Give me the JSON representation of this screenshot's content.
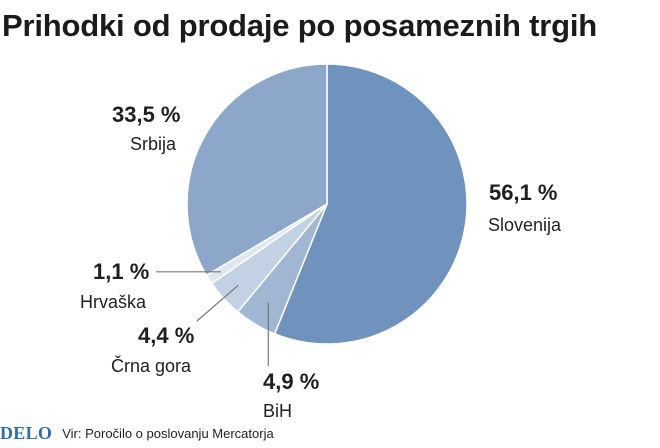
{
  "title": "Prihodki od prodaje po posameznih trgih",
  "footer": {
    "logo": "DELO",
    "source": "Vir: Poročilo o poslovanju Mercatorja"
  },
  "colors": {
    "background": "#ffffff",
    "text": "#1f1f1f",
    "logo": "#2f6ea6",
    "leader_line": "#777777"
  },
  "chart_data": {
    "type": "pie",
    "title": "Prihodki od prodaje po posameznih trgih",
    "slices": [
      {
        "name": "Slovenija",
        "value": 56.1,
        "label": "56,1 %",
        "color": "#6f93bd"
      },
      {
        "name": "BiH",
        "value": 4.9,
        "label": "4,9 %",
        "color": "#a0b6d3"
      },
      {
        "name": "Črna gora",
        "value": 4.4,
        "label": "4,4 %",
        "color": "#c3d1e5"
      },
      {
        "name": "Hrvaška",
        "value": 1.1,
        "label": "1,1 %",
        "color": "#dfe7f2"
      },
      {
        "name": "Srbija",
        "value": 33.5,
        "label": "33,5 %",
        "color": "#8da7cb"
      }
    ],
    "start": "12 o'clock",
    "direction": "clockwise",
    "legend": "none",
    "labels": "outside, value above name"
  }
}
